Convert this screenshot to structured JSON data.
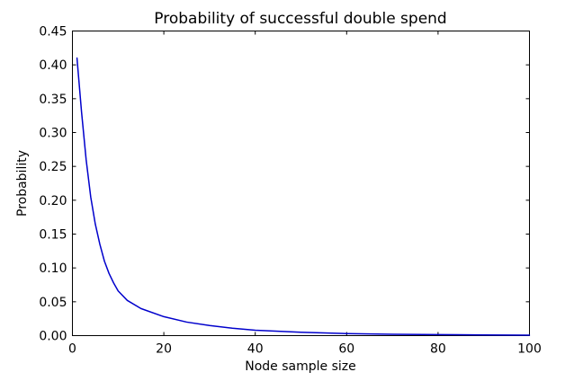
{
  "chart_data": {
    "type": "line",
    "title": "Probability of successful double spend",
    "xlabel": "Node sample size",
    "ylabel": "Probability",
    "xlim": [
      0,
      100
    ],
    "ylim": [
      0,
      0.45
    ],
    "x_ticks": [
      0,
      20,
      40,
      60,
      80,
      100
    ],
    "x_tick_labels": [
      "0",
      "20",
      "40",
      "60",
      "80",
      "100"
    ],
    "y_ticks": [
      0,
      0.05,
      0.1,
      0.15,
      0.2,
      0.25,
      0.3,
      0.35,
      0.4,
      0.45
    ],
    "y_tick_labels": [
      "0.00",
      "0.05",
      "0.10",
      "0.15",
      "0.20",
      "0.25",
      "0.30",
      "0.35",
      "0.40",
      "0.45"
    ],
    "grid": false,
    "series": [
      {
        "color": "#0000cc",
        "x": [
          1,
          2,
          3,
          4,
          5,
          6,
          7,
          8,
          9,
          10,
          12,
          15,
          20,
          25,
          30,
          35,
          40,
          50,
          60,
          70,
          80,
          90,
          100
        ],
        "y": [
          0.41,
          0.33,
          0.26,
          0.205,
          0.165,
          0.135,
          0.11,
          0.092,
          0.078,
          0.066,
          0.052,
          0.04,
          0.028,
          0.02,
          0.015,
          0.011,
          0.008,
          0.005,
          0.003,
          0.002,
          0.0015,
          0.001,
          0.0007
        ]
      }
    ]
  }
}
